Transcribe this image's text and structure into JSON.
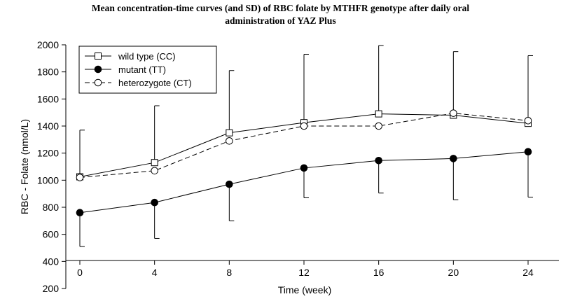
{
  "chart_data": {
    "type": "line",
    "title_lines": [
      "Mean concentration-time curves (and SD) of RBC folate by MTHFR genotype after daily oral",
      "administration of YAZ Plus"
    ],
    "xlabel": "Time (week)",
    "ylabel": "RBC - Folate (nmol/L)",
    "x": [
      0,
      4,
      8,
      12,
      16,
      20,
      24
    ],
    "xlim": [
      0,
      24
    ],
    "ylim": [
      200,
      2000
    ],
    "yticks": [
      200,
      400,
      600,
      800,
      1000,
      1200,
      1400,
      1600,
      1800,
      2000
    ],
    "xticks": [
      0,
      4,
      8,
      12,
      16,
      20,
      24
    ],
    "grid": false,
    "legend_position": "top-left",
    "series": [
      {
        "name": "wild type (CC)",
        "key": "cc",
        "marker": "square-open",
        "line": "solid",
        "values": [
          1025,
          1130,
          1350,
          1425,
          1490,
          1480,
          1420
        ],
        "sd_upper": [
          1370,
          1550,
          1810,
          1930,
          1995,
          1950,
          1920
        ],
        "sd_lower": []
      },
      {
        "name": "mutant (TT)",
        "key": "tt",
        "marker": "circle-filled",
        "line": "solid",
        "values": [
          760,
          835,
          970,
          1090,
          1145,
          1160,
          1210
        ],
        "sd_upper": [],
        "sd_lower": [
          510,
          570,
          700,
          870,
          905,
          855,
          875
        ]
      },
      {
        "name": "heterozygote (CT)",
        "key": "ct",
        "marker": "circle-open",
        "line": "dashed",
        "values": [
          1020,
          1070,
          1290,
          1400,
          1400,
          1495,
          1440
        ],
        "sd_upper": [],
        "sd_lower": []
      }
    ],
    "colors": {
      "axis": "#000000",
      "line": "#000000",
      "background": "#ffffff"
    }
  }
}
